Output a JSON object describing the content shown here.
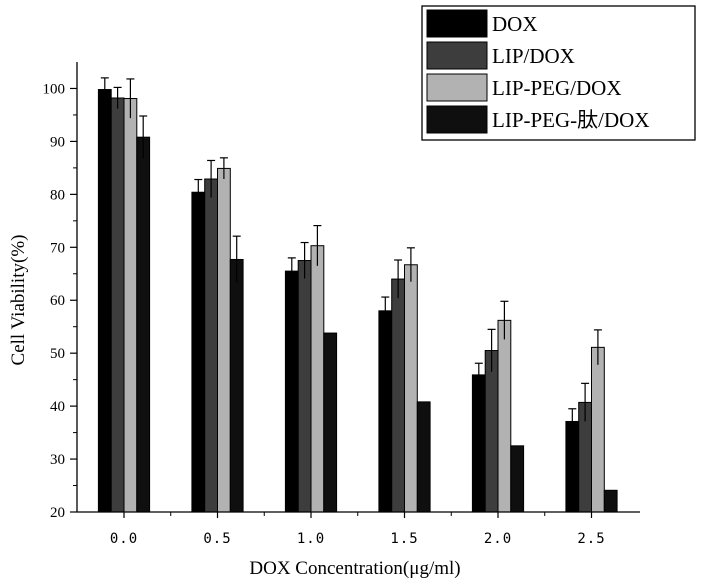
{
  "chart_data": {
    "type": "bar",
    "xlabel": "DOX Concentration(μg/ml)",
    "ylabel": "Cell Viability(%)",
    "ylim": [
      20,
      105
    ],
    "yticks": [
      20,
      30,
      40,
      50,
      60,
      70,
      80,
      90,
      100
    ],
    "categories": [
      "0.0",
      "0.5",
      "1.0",
      "1.5",
      "2.0",
      "2.5"
    ],
    "legend_position": "top-right",
    "series": [
      {
        "name": "DOX",
        "color": "#000000",
        "values": [
          99.8,
          80.4,
          65.5,
          58.0,
          45.9,
          37.1
        ],
        "errors": [
          2.2,
          2.4,
          2.5,
          2.6,
          2.2,
          2.4
        ]
      },
      {
        "name": "LIP/DOX",
        "color": "#3d3d3d",
        "values": [
          98.2,
          82.9,
          67.5,
          64.0,
          50.5,
          40.7
        ],
        "errors": [
          2.0,
          3.5,
          3.4,
          3.6,
          4.0,
          3.6
        ]
      },
      {
        "name": "LIP-PEG/DOX",
        "color": "#b2b2b2",
        "values": [
          98.1,
          84.9,
          70.3,
          66.7,
          56.2,
          51.1
        ],
        "errors": [
          3.7,
          2.0,
          3.8,
          3.2,
          3.6,
          3.3
        ]
      },
      {
        "name": "LIP-PEG-肽/DOX",
        "color": "#0f0f0f",
        "values": [
          90.8,
          67.7,
          53.8,
          40.8,
          32.5,
          24.1
        ],
        "errors": [
          4.0,
          4.4,
          0,
          0,
          0,
          0
        ]
      }
    ]
  }
}
